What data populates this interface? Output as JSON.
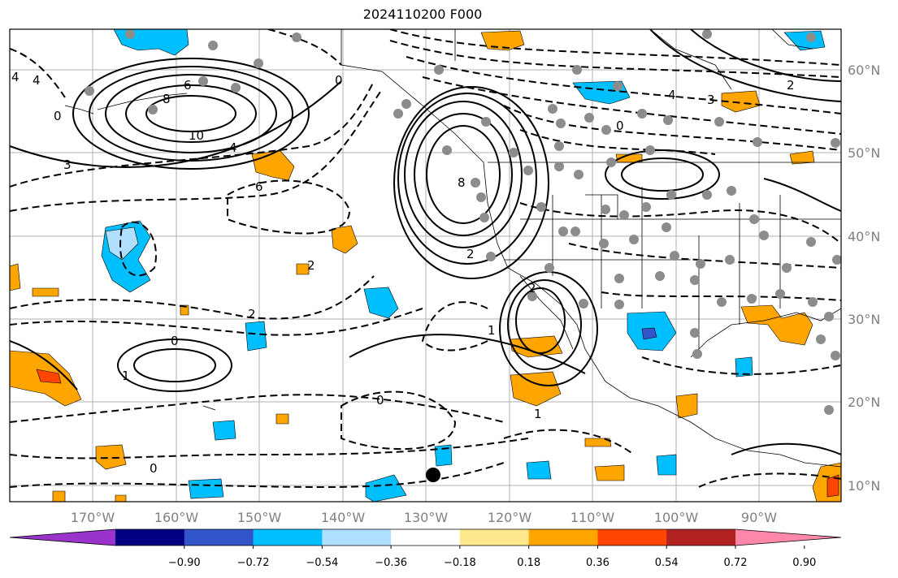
{
  "title": "2024110200 F000",
  "lon_labels": [
    "170°W",
    "160°W",
    "150°W",
    "140°W",
    "130°W",
    "120°W",
    "110°W",
    "100°W",
    "90°W"
  ],
  "lat_labels": [
    "60°N",
    "50°N",
    "40°N",
    "30°N",
    "20°N",
    "10°N"
  ],
  "colorbar": {
    "tick_labels": [
      "−0.90",
      "−0.72",
      "−0.54",
      "−0.36",
      "−0.18",
      "0.18",
      "0.36",
      "0.54",
      "0.72",
      "0.90"
    ],
    "colors": [
      "#9933cc",
      "#000080",
      "#3355cc",
      "#00bfff",
      "#b0e0ff",
      "#ffffff",
      "#ffe88c",
      "#ffa500",
      "#ff4500",
      "#b22222",
      "#ff88aa"
    ]
  },
  "contour_labels": {
    "c1": "10",
    "c2": "8",
    "c3": "6",
    "c4": "4",
    "c5": "0",
    "c6": "3",
    "c7": "8",
    "c8": "2",
    "c9": "0",
    "c10": "1",
    "c11": "0",
    "c12": "2",
    "c13": "1",
    "c14": "0",
    "c15": "2",
    "c16": "6",
    "c17": "4",
    "c18": "2",
    "c19": "4",
    "c20": "3",
    "c21": "0",
    "c22": "1",
    "c23": "0",
    "c24": "2",
    "c25": "4"
  }
}
